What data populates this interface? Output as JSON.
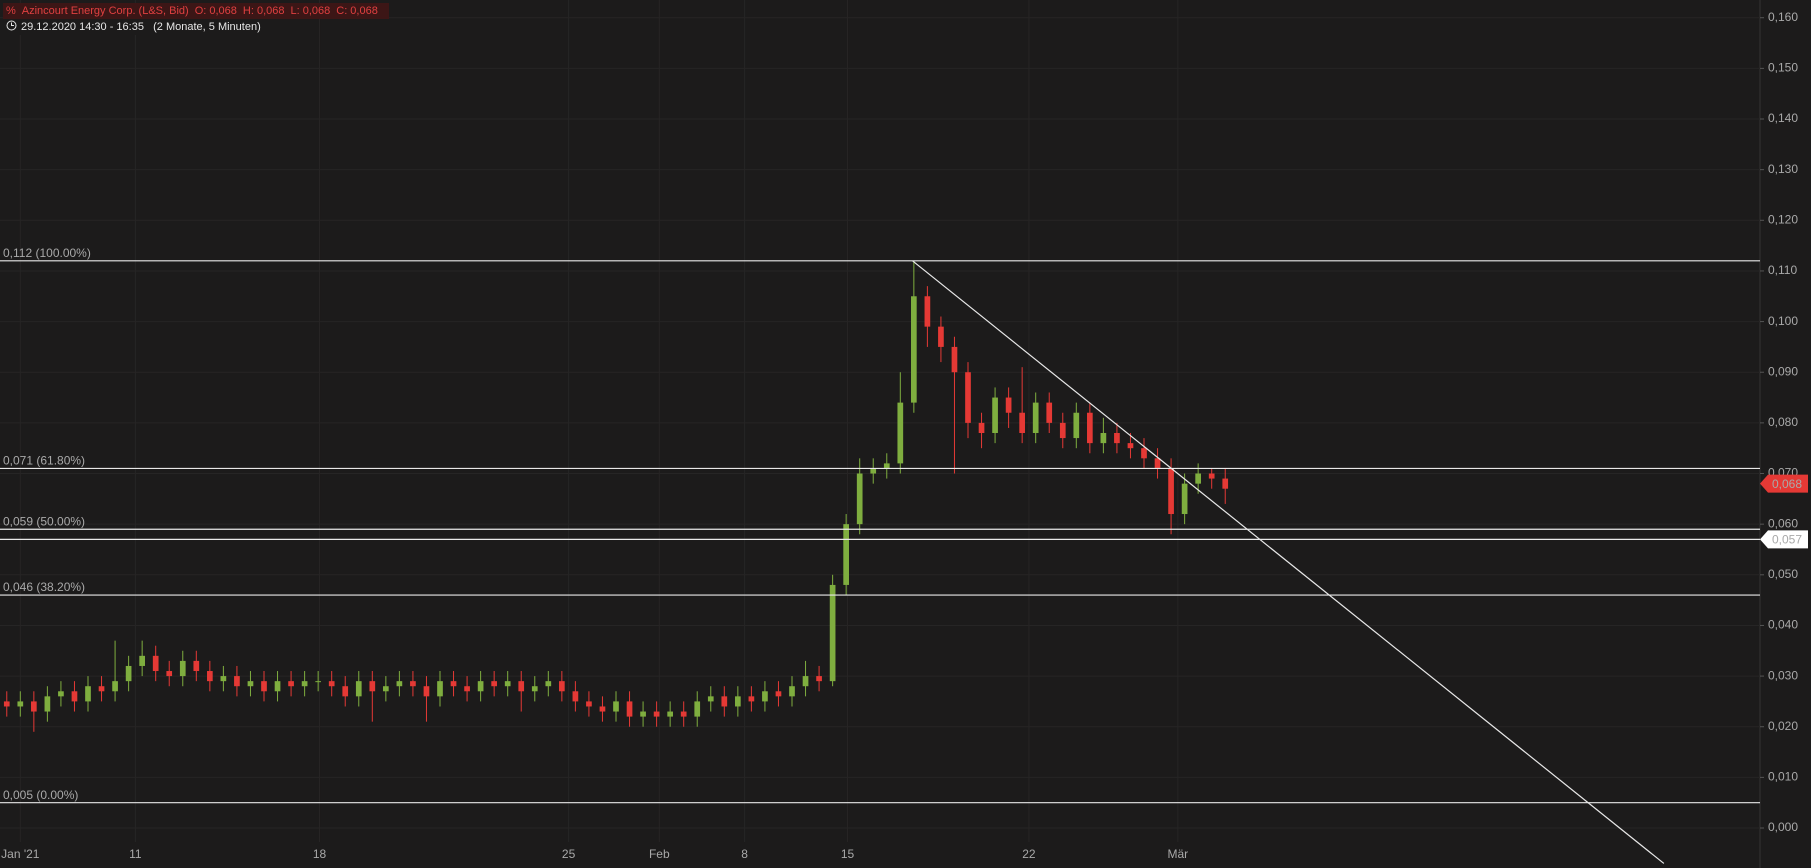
{
  "header": {
    "title": "Azincourt Energy Corp. (L&S, Bid)",
    "ohlc": [
      "O: 0,068",
      "H: 0,068",
      "L: 0,068",
      "C: 0,068"
    ],
    "range": "29.12.2020 14:30 - 16:35",
    "span": "(2 Monate, 5 Minuten)"
  },
  "chart_data": {
    "type": "candlestick",
    "up_color": "#7fae3f",
    "down_color": "#e53935",
    "grid": true,
    "xlim": [
      0,
      130
    ],
    "xticks": [
      {
        "value": 1.5,
        "label": "Jan '21"
      },
      {
        "value": 10,
        "label": "11"
      },
      {
        "value": 23.6,
        "label": "18"
      },
      {
        "value": 42,
        "label": "25"
      },
      {
        "value": 48.7,
        "label": "Feb"
      },
      {
        "value": 55,
        "label": "8"
      },
      {
        "value": 62.6,
        "label": "15"
      },
      {
        "value": 76,
        "label": "22"
      },
      {
        "value": 87,
        "label": "Mär"
      }
    ],
    "ylim": [
      -0.0075,
      0.1635
    ],
    "yticks": [
      {
        "value": 0,
        "label": "0,000"
      },
      {
        "value": 0.01,
        "label": "0,010"
      },
      {
        "value": 0.02,
        "label": "0,020"
      },
      {
        "value": 0.03,
        "label": "0,030"
      },
      {
        "value": 0.04,
        "label": "0,040"
      },
      {
        "value": 0.05,
        "label": "0,050"
      },
      {
        "value": 0.06,
        "label": "0,060"
      },
      {
        "value": 0.07,
        "label": "0,070"
      },
      {
        "value": 0.08,
        "label": "0,080"
      },
      {
        "value": 0.09,
        "label": "0,090"
      },
      {
        "value": 0.1,
        "label": "0,100"
      },
      {
        "value": 0.11,
        "label": "0,110"
      },
      {
        "value": 0.12,
        "label": "0,120"
      },
      {
        "value": 0.13,
        "label": "0,130"
      },
      {
        "value": 0.14,
        "label": "0,140"
      },
      {
        "value": 0.15,
        "label": "0,150"
      },
      {
        "value": 0.16,
        "label": "0,160"
      }
    ],
    "open": [
      0.025,
      0.024,
      0.025,
      0.023,
      0.026,
      0.027,
      0.025,
      0.028,
      0.027,
      0.029,
      0.032,
      0.034,
      0.031,
      0.03,
      0.033,
      0.031,
      0.029,
      0.03,
      0.028,
      0.029,
      0.027,
      0.029,
      0.028,
      0.029,
      0.029,
      0.028,
      0.026,
      0.029,
      0.027,
      0.028,
      0.029,
      0.028,
      0.026,
      0.029,
      0.028,
      0.027,
      0.029,
      0.028,
      0.029,
      0.027,
      0.028,
      0.029,
      0.027,
      0.025,
      0.024,
      0.023,
      0.025,
      0.022,
      0.023,
      0.022,
      0.023,
      0.022,
      0.025,
      0.026,
      0.024,
      0.026,
      0.025,
      0.027,
      0.026,
      0.028,
      0.03,
      0.029,
      0.048,
      0.06,
      0.07,
      0.071,
      0.072,
      0.084,
      0.105,
      0.099,
      0.095,
      0.09,
      0.08,
      0.078,
      0.085,
      0.082,
      0.078,
      0.084,
      0.08,
      0.077,
      0.082,
      0.076,
      0.078,
      0.076,
      0.075,
      0.073,
      0.071,
      0.062,
      0.068,
      0.07,
      0.069
    ],
    "high": [
      0.027,
      0.027,
      0.027,
      0.028,
      0.029,
      0.029,
      0.03,
      0.03,
      0.037,
      0.034,
      0.037,
      0.036,
      0.033,
      0.035,
      0.035,
      0.033,
      0.032,
      0.032,
      0.031,
      0.031,
      0.031,
      0.031,
      0.031,
      0.031,
      0.031,
      0.03,
      0.031,
      0.031,
      0.03,
      0.031,
      0.031,
      0.03,
      0.031,
      0.031,
      0.03,
      0.031,
      0.031,
      0.031,
      0.031,
      0.03,
      0.031,
      0.031,
      0.029,
      0.027,
      0.026,
      0.027,
      0.027,
      0.025,
      0.025,
      0.025,
      0.025,
      0.027,
      0.028,
      0.028,
      0.028,
      0.028,
      0.029,
      0.029,
      0.03,
      0.033,
      0.032,
      0.05,
      0.062,
      0.073,
      0.073,
      0.074,
      0.09,
      0.112,
      0.107,
      0.101,
      0.097,
      0.092,
      0.082,
      0.087,
      0.087,
      0.091,
      0.086,
      0.086,
      0.082,
      0.084,
      0.084,
      0.081,
      0.08,
      0.078,
      0.077,
      0.075,
      0.073,
      0.07,
      0.072,
      0.071,
      0.071
    ],
    "low": [
      0.022,
      0.022,
      0.019,
      0.021,
      0.024,
      0.023,
      0.023,
      0.025,
      0.025,
      0.027,
      0.03,
      0.029,
      0.028,
      0.028,
      0.029,
      0.027,
      0.027,
      0.026,
      0.026,
      0.025,
      0.025,
      0.026,
      0.026,
      0.027,
      0.026,
      0.024,
      0.024,
      0.021,
      0.025,
      0.026,
      0.026,
      0.021,
      0.024,
      0.026,
      0.025,
      0.025,
      0.026,
      0.026,
      0.023,
      0.025,
      0.026,
      0.025,
      0.023,
      0.022,
      0.021,
      0.021,
      0.02,
      0.02,
      0.02,
      0.02,
      0.02,
      0.02,
      0.023,
      0.022,
      0.022,
      0.023,
      0.023,
      0.024,
      0.024,
      0.026,
      0.027,
      0.028,
      0.046,
      0.058,
      0.068,
      0.069,
      0.07,
      0.082,
      0.095,
      0.092,
      0.07,
      0.077,
      0.075,
      0.076,
      0.079,
      0.076,
      0.076,
      0.078,
      0.075,
      0.075,
      0.074,
      0.074,
      0.074,
      0.073,
      0.071,
      0.069,
      0.058,
      0.06,
      0.066,
      0.067,
      0.064
    ],
    "close": [
      0.024,
      0.025,
      0.023,
      0.026,
      0.027,
      0.025,
      0.028,
      0.027,
      0.029,
      0.032,
      0.034,
      0.031,
      0.03,
      0.033,
      0.031,
      0.029,
      0.03,
      0.028,
      0.029,
      0.027,
      0.029,
      0.028,
      0.029,
      0.029,
      0.028,
      0.026,
      0.029,
      0.027,
      0.028,
      0.029,
      0.028,
      0.026,
      0.029,
      0.028,
      0.027,
      0.029,
      0.028,
      0.029,
      0.027,
      0.028,
      0.029,
      0.027,
      0.025,
      0.024,
      0.023,
      0.025,
      0.022,
      0.023,
      0.022,
      0.023,
      0.022,
      0.025,
      0.026,
      0.024,
      0.026,
      0.025,
      0.027,
      0.026,
      0.028,
      0.03,
      0.029,
      0.048,
      0.06,
      0.07,
      0.071,
      0.072,
      0.084,
      0.105,
      0.099,
      0.095,
      0.09,
      0.08,
      0.078,
      0.085,
      0.082,
      0.078,
      0.084,
      0.08,
      0.077,
      0.082,
      0.076,
      0.078,
      0.076,
      0.075,
      0.073,
      0.071,
      0.062,
      0.068,
      0.07,
      0.069,
      0.067
    ],
    "levels": [
      {
        "value": 0.112,
        "label": "0,112 (100.00%)"
      },
      {
        "value": 0.071,
        "label": "0,071 (61.80%)"
      },
      {
        "value": 0.059,
        "label": "0,059 (50.00%)"
      },
      {
        "value": 0.046,
        "label": "0,046 (38.20%)"
      },
      {
        "value": 0.005,
        "label": "0,005 (0.00%)"
      }
    ],
    "price_line": {
      "value": 0.057,
      "label": "0,057"
    },
    "last_price": {
      "value": 0.068,
      "label": "0,068"
    },
    "trendline": {
      "x": [
        67.4,
        122.9
      ],
      "y": [
        0.112,
        -0.007
      ]
    }
  }
}
